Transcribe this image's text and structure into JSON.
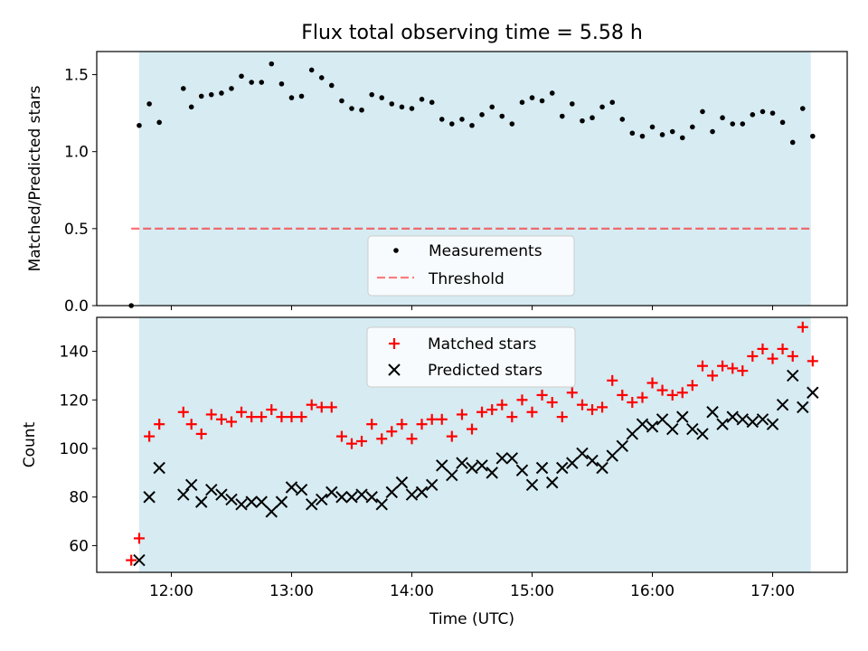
{
  "chart_data": [
    {
      "type": "scatter",
      "title": "Flux total observing time = 5.58 h",
      "xlabel": "",
      "ylabel": "Matched/Predicted stars",
      "ylim": [
        0,
        1.65
      ],
      "xlim_hours": [
        11.38,
        17.62
      ],
      "yticks": [
        "0.0",
        "0.5",
        "1.0",
        "1.5"
      ],
      "shaded_interval_hours": [
        11.733,
        17.317
      ],
      "shade_color": "#add8e6",
      "legend_position": "lower-center",
      "threshold": {
        "name": "Threshold",
        "value": 0.5,
        "color": "#ff0000",
        "style": "dashed"
      },
      "series": [
        {
          "name": "Measurements",
          "marker": "dot",
          "color": "#000000",
          "x": [
            11.667,
            11.733,
            11.817,
            11.9,
            12.1,
            12.167,
            12.25,
            12.333,
            12.417,
            12.5,
            12.583,
            12.667,
            12.75,
            12.833,
            12.917,
            13.0,
            13.083,
            13.167,
            13.25,
            13.333,
            13.417,
            13.5,
            13.583,
            13.667,
            13.75,
            13.833,
            13.917,
            14.0,
            14.083,
            14.167,
            14.25,
            14.333,
            14.417,
            14.5,
            14.583,
            14.667,
            14.75,
            14.833,
            14.917,
            15.0,
            15.083,
            15.167,
            15.25,
            15.333,
            15.417,
            15.5,
            15.583,
            15.667,
            15.75,
            15.833,
            15.917,
            16.0,
            16.083,
            16.167,
            16.25,
            16.333,
            16.417,
            16.5,
            16.583,
            16.667,
            16.75,
            16.833,
            16.917,
            17.0,
            17.083,
            17.167,
            17.25,
            17.333
          ],
          "y": [
            0.0,
            1.17,
            1.31,
            1.19,
            1.41,
            1.29,
            1.36,
            1.37,
            1.38,
            1.41,
            1.49,
            1.45,
            1.45,
            1.57,
            1.44,
            1.35,
            1.36,
            1.53,
            1.48,
            1.43,
            1.33,
            1.28,
            1.27,
            1.37,
            1.35,
            1.31,
            1.29,
            1.28,
            1.34,
            1.32,
            1.21,
            1.18,
            1.21,
            1.17,
            1.24,
            1.29,
            1.23,
            1.18,
            1.32,
            1.35,
            1.33,
            1.38,
            1.23,
            1.31,
            1.2,
            1.22,
            1.29,
            1.32,
            1.21,
            1.12,
            1.1,
            1.16,
            1.11,
            1.13,
            1.09,
            1.16,
            1.26,
            1.13,
            1.22,
            1.18,
            1.18,
            1.24,
            1.26,
            1.25,
            1.19,
            1.06,
            1.28,
            1.1
          ]
        }
      ]
    },
    {
      "type": "scatter",
      "title": "",
      "xlabel": "Time (UTC)",
      "ylabel": "Count",
      "ylim": [
        49,
        154
      ],
      "xlim_hours": [
        11.38,
        17.62
      ],
      "yticks": [
        "60",
        "80",
        "100",
        "120",
        "140"
      ],
      "xticks": [
        "12:00",
        "13:00",
        "14:00",
        "15:00",
        "16:00",
        "17:00"
      ],
      "xtick_hours": [
        12,
        13,
        14,
        15,
        16,
        17
      ],
      "shaded_interval_hours": [
        11.733,
        17.317
      ],
      "shade_color": "#add8e6",
      "legend_position": "upper-center",
      "series": [
        {
          "name": "Matched stars",
          "marker": "plus",
          "color": "#ff0000",
          "x": [
            11.667,
            11.733,
            11.817,
            11.9,
            12.1,
            12.167,
            12.25,
            12.333,
            12.417,
            12.5,
            12.583,
            12.667,
            12.75,
            12.833,
            12.917,
            13.0,
            13.083,
            13.167,
            13.25,
            13.333,
            13.417,
            13.5,
            13.583,
            13.667,
            13.75,
            13.833,
            13.917,
            14.0,
            14.083,
            14.167,
            14.25,
            14.333,
            14.417,
            14.5,
            14.583,
            14.667,
            14.75,
            14.833,
            14.917,
            15.0,
            15.083,
            15.167,
            15.25,
            15.333,
            15.417,
            15.5,
            15.583,
            15.667,
            15.75,
            15.833,
            15.917,
            16.0,
            16.083,
            16.167,
            16.25,
            16.333,
            16.417,
            16.5,
            16.583,
            16.667,
            16.75,
            16.833,
            16.917,
            17.0,
            17.083,
            17.167,
            17.25,
            17.333
          ],
          "y": [
            54,
            63,
            105,
            110,
            115,
            110,
            106,
            114,
            112,
            111,
            115,
            113,
            113,
            116,
            113,
            113,
            113,
            118,
            117,
            117,
            105,
            102,
            103,
            110,
            104,
            107,
            110,
            104,
            110,
            112,
            112,
            105,
            114,
            108,
            115,
            116,
            118,
            113,
            120,
            115,
            122,
            119,
            113,
            123,
            118,
            116,
            117,
            128,
            122,
            119,
            121,
            127,
            124,
            122,
            123,
            126,
            134,
            130,
            134,
            133,
            132,
            138,
            141,
            137,
            141,
            138,
            150,
            136
          ]
        },
        {
          "name": "Predicted stars",
          "marker": "x",
          "color": "#000000",
          "x": [
            11.733,
            11.817,
            11.9,
            12.1,
            12.167,
            12.25,
            12.333,
            12.417,
            12.5,
            12.583,
            12.667,
            12.75,
            12.833,
            12.917,
            13.0,
            13.083,
            13.167,
            13.25,
            13.333,
            13.417,
            13.5,
            13.583,
            13.667,
            13.75,
            13.833,
            13.917,
            14.0,
            14.083,
            14.167,
            14.25,
            14.333,
            14.417,
            14.5,
            14.583,
            14.667,
            14.75,
            14.833,
            14.917,
            15.0,
            15.083,
            15.167,
            15.25,
            15.333,
            15.417,
            15.5,
            15.583,
            15.667,
            15.75,
            15.833,
            15.917,
            16.0,
            16.083,
            16.167,
            16.25,
            16.333,
            16.417,
            16.5,
            16.583,
            16.667,
            16.75,
            16.833,
            16.917,
            17.0,
            17.083,
            17.167,
            17.25,
            17.333
          ],
          "y": [
            54,
            80,
            92,
            81,
            85,
            78,
            83,
            81,
            79,
            77,
            78,
            78,
            74,
            78,
            84,
            83,
            77,
            79,
            82,
            80,
            80,
            81,
            80,
            77,
            82,
            86,
            81,
            82,
            85,
            93,
            89,
            94,
            92,
            93,
            90,
            96,
            96,
            91,
            85,
            92,
            86,
            92,
            94,
            98,
            95,
            92,
            97,
            101,
            106,
            110,
            109,
            112,
            108,
            113,
            108,
            106,
            115,
            110,
            113,
            112,
            111,
            112,
            110,
            118,
            130,
            117,
            123
          ]
        }
      ]
    }
  ]
}
